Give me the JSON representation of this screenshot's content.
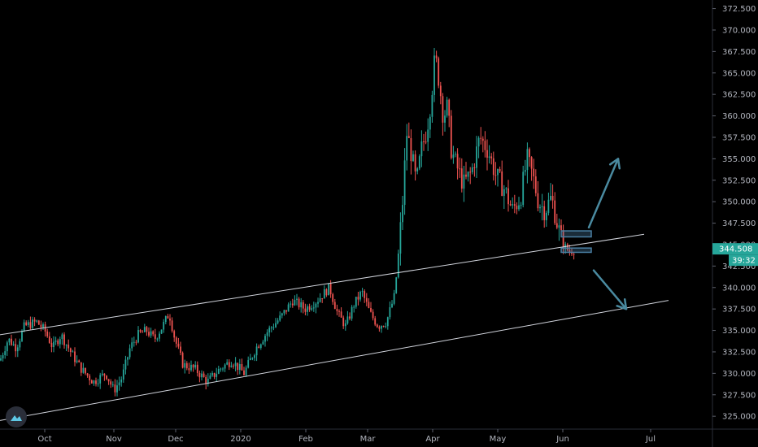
{
  "chart_data": {
    "type": "candlestick",
    "y_axis": {
      "min": 323.5,
      "max": 373.5,
      "ticks": [
        "325.000",
        "327.500",
        "330.000",
        "332.500",
        "335.000",
        "337.500",
        "340.000",
        "342.500",
        "345.000",
        "347.500",
        "350.000",
        "352.500",
        "355.000",
        "357.500",
        "360.000",
        "362.500",
        "365.000",
        "367.500",
        "370.000",
        "372.500"
      ]
    },
    "x_axis": {
      "labels": [
        "Oct",
        "Nov",
        "Dec",
        "2020",
        "Feb",
        "Mar",
        "Apr",
        "May",
        "Jun",
        "Jul"
      ]
    },
    "price_path": [
      [
        0,
        331.5
      ],
      [
        10,
        334
      ],
      [
        20,
        333
      ],
      [
        30,
        335.5
      ],
      [
        45,
        336
      ],
      [
        55,
        335
      ],
      [
        65,
        333
      ],
      [
        75,
        334.5
      ],
      [
        90,
        332
      ],
      [
        100,
        330.5
      ],
      [
        115,
        329
      ],
      [
        130,
        330
      ],
      [
        140,
        328
      ],
      [
        150,
        329.5
      ],
      [
        160,
        333
      ],
      [
        170,
        334.5
      ],
      [
        180,
        335
      ],
      [
        190,
        334
      ],
      [
        200,
        335.5
      ],
      [
        208,
        337
      ],
      [
        215,
        334
      ],
      [
        225,
        331
      ],
      [
        240,
        330.5
      ],
      [
        255,
        329
      ],
      [
        270,
        330.5
      ],
      [
        285,
        331.5
      ],
      [
        300,
        330
      ],
      [
        315,
        333
      ],
      [
        330,
        335
      ],
      [
        345,
        336.5
      ],
      [
        360,
        338.5
      ],
      [
        375,
        337.5
      ],
      [
        390,
        338.5
      ],
      [
        405,
        340
      ],
      [
        415,
        337
      ],
      [
        425,
        335.5
      ],
      [
        435,
        338
      ],
      [
        445,
        339.5
      ],
      [
        455,
        337
      ],
      [
        465,
        335.5
      ],
      [
        475,
        336
      ],
      [
        485,
        339
      ],
      [
        490,
        344
      ],
      [
        495,
        350
      ],
      [
        500,
        358
      ],
      [
        505,
        356
      ],
      [
        512,
        352
      ],
      [
        518,
        356
      ],
      [
        525,
        358.5
      ],
      [
        530,
        362
      ],
      [
        535,
        367
      ],
      [
        540,
        364
      ],
      [
        545,
        360
      ],
      [
        550,
        361
      ],
      [
        555,
        356
      ],
      [
        560,
        354.5
      ],
      [
        570,
        352
      ],
      [
        580,
        353.5
      ],
      [
        590,
        357.5
      ],
      [
        600,
        356
      ],
      [
        610,
        353
      ],
      [
        620,
        351.5
      ],
      [
        630,
        349
      ],
      [
        640,
        350.5
      ],
      [
        648,
        355
      ],
      [
        655,
        353
      ],
      [
        662,
        350
      ],
      [
        670,
        349
      ],
      [
        678,
        350.5
      ],
      [
        685,
        347.5
      ],
      [
        692,
        345
      ],
      [
        700,
        344.2
      ],
      [
        708,
        344.5
      ]
    ],
    "last_price": "344.508",
    "countdown": "39:32",
    "channel_upper": {
      "from": [
        0,
        334.5
      ],
      "to": [
        792,
        346.2
      ]
    },
    "channel_lower": {
      "from": [
        0,
        324.5
      ],
      "to": [
        822,
        338.5
      ]
    },
    "zone_upper": {
      "x0": 690,
      "x1": 727,
      "y0": 345.9,
      "y1": 346.6
    },
    "zone_lower": {
      "x0": 690,
      "x1": 727,
      "y0": 344.1,
      "y1": 344.6
    },
    "arrow_up": {
      "from": [
        724,
        347
      ],
      "to": [
        760,
        355
      ]
    },
    "arrow_down": {
      "from": [
        730,
        342
      ],
      "to": [
        770,
        337.5
      ]
    },
    "colors": {
      "bull": "#26a69a",
      "bear": "#ef5350",
      "channel": "#d1d4dc",
      "arrow": "#4a8aa0",
      "zone": "#4a7fa3",
      "price_badge": "#26a69a",
      "axis_text": "#b2b5be"
    }
  },
  "logo": {
    "icon": "cloud-icon"
  }
}
